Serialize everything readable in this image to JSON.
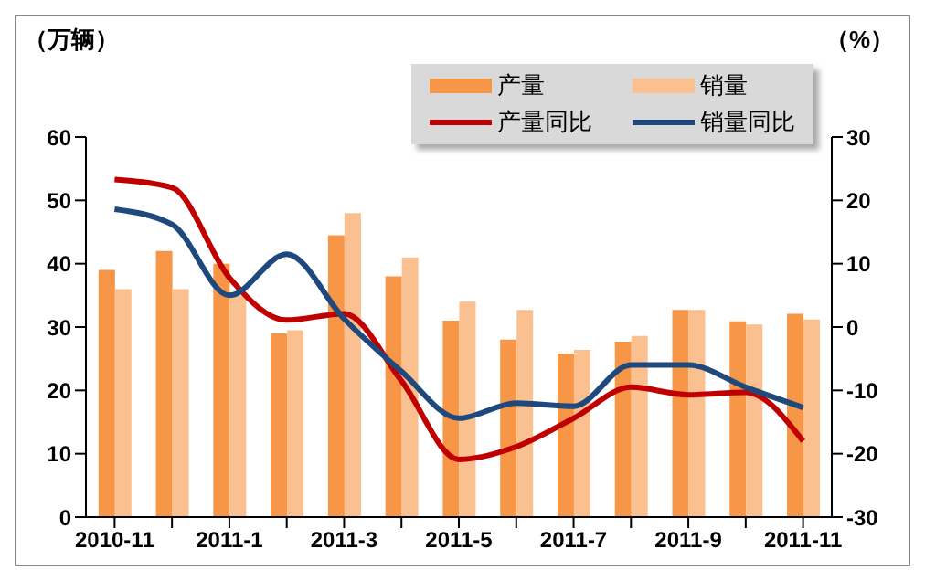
{
  "chart_data": {
    "type": "bar",
    "ylabel": "（万辆）",
    "y2label": "（%）",
    "categories": [
      "2010-11",
      null,
      "2011-1",
      null,
      "2011-3",
      null,
      "2011-5",
      null,
      "2011-7",
      null,
      "2011-9",
      null,
      "2011-11"
    ],
    "series": [
      {
        "name": "产量",
        "color": "#f79646",
        "values": [
          39,
          42,
          40,
          29,
          44.5,
          38,
          31,
          28,
          25.8,
          27.7,
          32.7,
          30.9,
          32.1
        ]
      },
      {
        "name": "销量",
        "color": "#fac090",
        "values": [
          36,
          36,
          35,
          29.5,
          48,
          41,
          34,
          32.7,
          26.4,
          28.6,
          32.7,
          30.4,
          31.2
        ]
      },
      {
        "name": "产量同比",
        "type": "line",
        "axis": "y2",
        "color": "#c00000",
        "values": [
          23.3,
          22,
          7.8,
          1.1,
          2.1,
          -8.5,
          -20.9,
          -18.9,
          -14.4,
          -9.5,
          -10.7,
          -10.3,
          -18
        ]
      },
      {
        "name": "销量同比",
        "type": "line",
        "axis": "y2",
        "color": "#1f497d",
        "values": [
          18.6,
          16.2,
          5,
          11.5,
          1.3,
          -7,
          -14.4,
          -12,
          -12.5,
          -6,
          -6,
          -9.5,
          -12.7
        ]
      }
    ],
    "ylim": [
      0,
      60
    ],
    "yticks": [
      0,
      10,
      20,
      30,
      40,
      50,
      60
    ],
    "y2lim": [
      -30,
      30
    ],
    "y2ticks": [
      -30,
      -20,
      -10,
      0,
      10,
      20,
      30
    ],
    "grid": false,
    "legend": "top right",
    "marker": "none",
    "line_style": "solid"
  }
}
